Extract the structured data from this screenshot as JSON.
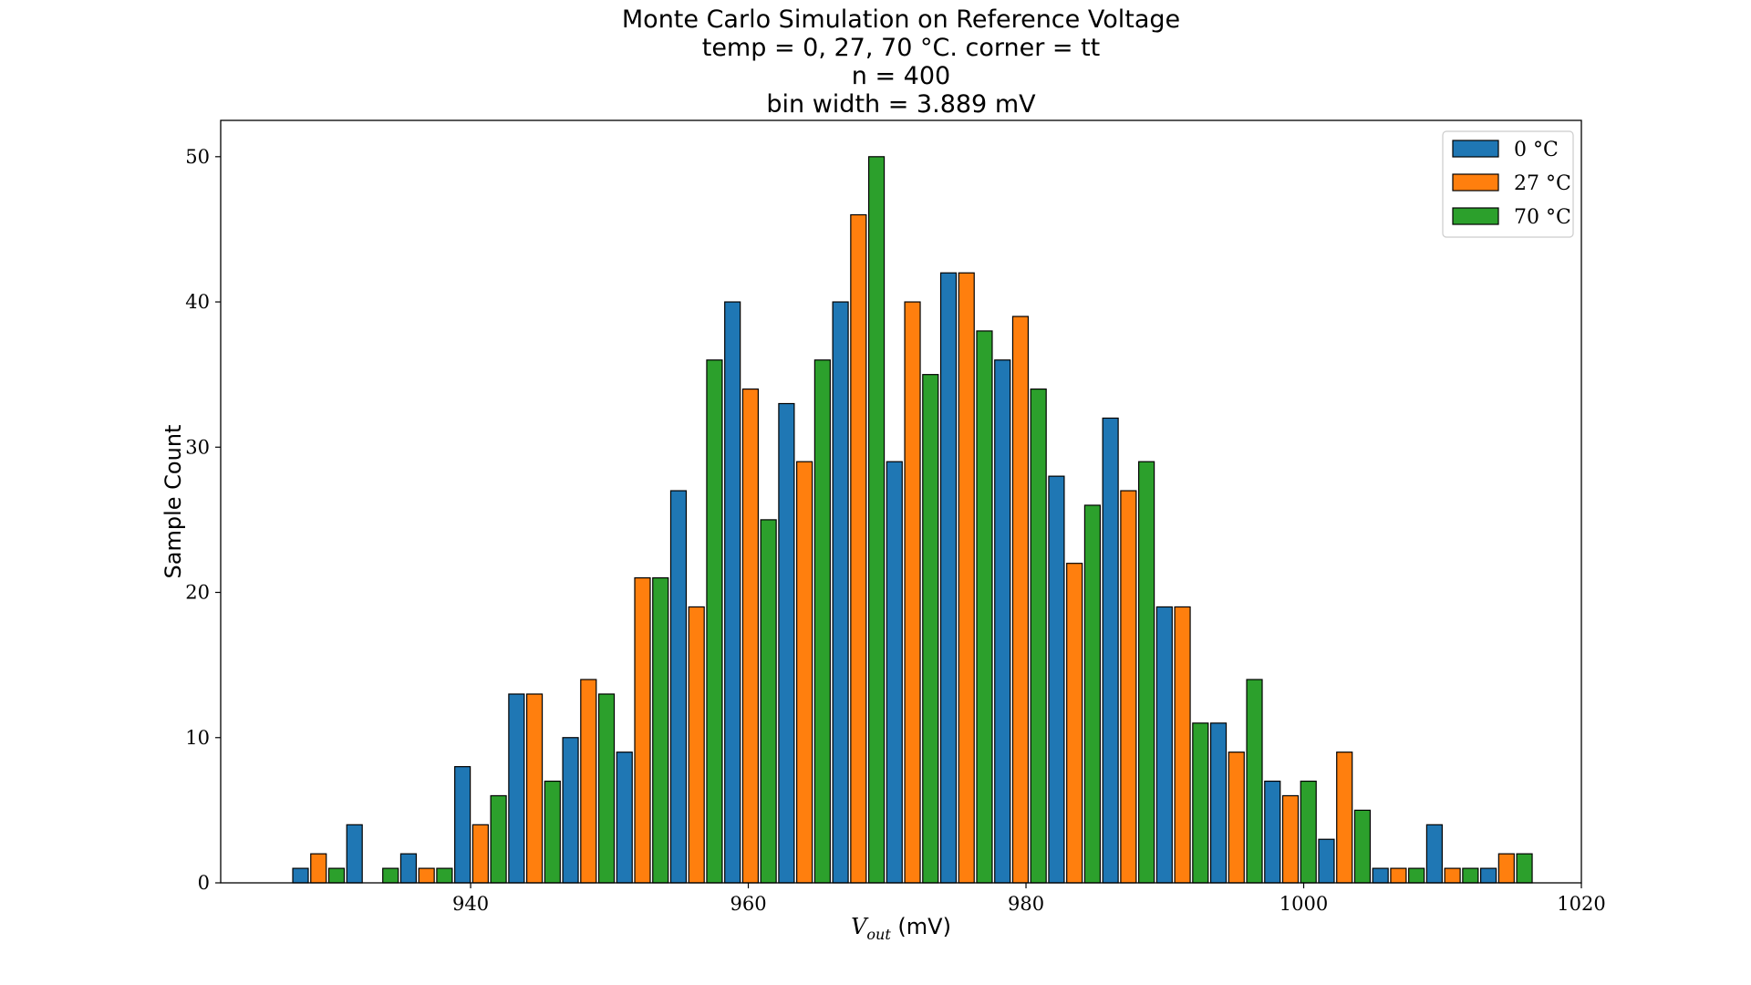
{
  "chart_data": {
    "type": "bar",
    "title": "Monte Carlo Simulation on Reference Voltage",
    "subtitle_lines": [
      "temp = 0, 27, 70 °C. corner = tt",
      "n = 400",
      "bin width = 3.889 mV"
    ],
    "xlabel": "V_out (mV)",
    "xlabel_main": "V",
    "xlabel_sub": "out",
    "xlabel_unit": " (mV)",
    "ylabel": "Sample Count",
    "xlim": [
      922,
      1020
    ],
    "ylim": [
      0,
      52.5
    ],
    "xticks": [
      940,
      960,
      980,
      1000,
      1020
    ],
    "yticks": [
      0,
      10,
      20,
      30,
      40,
      50
    ],
    "grid": false,
    "legend_position": "top-right",
    "bin_width": 3.889,
    "bin_start": 927.1,
    "series": [
      {
        "name": "0 °C",
        "color": "#1f77b4",
        "values": [
          1,
          4,
          2,
          8,
          13,
          10,
          9,
          27,
          40,
          33,
          40,
          29,
          42,
          36,
          28,
          32,
          19,
          11,
          7,
          3,
          1,
          4,
          1
        ]
      },
      {
        "name": "27 °C",
        "color": "#ff7f0e",
        "values": [
          2,
          0,
          1,
          4,
          13,
          14,
          21,
          19,
          34,
          29,
          46,
          40,
          42,
          39,
          22,
          27,
          19,
          9,
          6,
          9,
          1,
          1,
          2
        ]
      },
      {
        "name": "70 °C",
        "color": "#2ca02c",
        "values": [
          1,
          1,
          1,
          6,
          7,
          13,
          21,
          36,
          25,
          36,
          50,
          35,
          38,
          34,
          26,
          29,
          11,
          14,
          7,
          5,
          1,
          1,
          2
        ]
      }
    ]
  }
}
